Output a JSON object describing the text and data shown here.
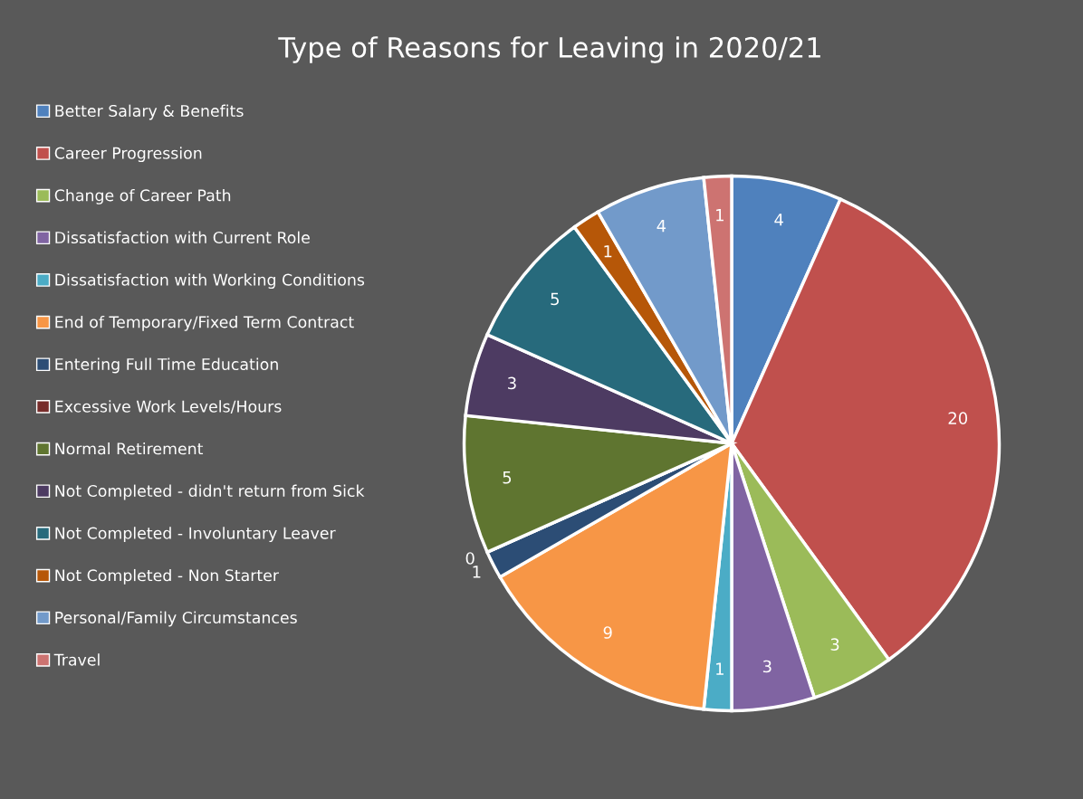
{
  "chart_data": {
    "type": "pie",
    "title": "Type of Reasons for Leaving in 2020/21",
    "categories": [
      "Better Salary & Benefits",
      "Career Progression",
      "Change of Career Path",
      "Dissatisfaction with Current Role",
      "Dissatisfaction with Working Conditions",
      "End of Temporary/Fixed Term Contract",
      "Entering Full Time Education",
      "Excessive Work Levels/Hours",
      "Normal Retirement",
      "Not Completed - didn't return from Sick",
      "Not Completed - Involuntary Leaver",
      "Not Completed - Non Starter",
      "Personal/Family Circumstances",
      "Travel"
    ],
    "values": [
      4,
      20,
      3,
      3,
      1,
      9,
      1,
      0,
      5,
      3,
      5,
      1,
      4,
      1
    ],
    "colors": [
      "#4f81bd",
      "#c0504d",
      "#9bbb59",
      "#8064a2",
      "#4bacc6",
      "#f79646",
      "#2c4d75",
      "#772c2a",
      "#5f7530",
      "#4d3b62",
      "#276a7c",
      "#b65708",
      "#729aca",
      "#cd7371"
    ],
    "value_labels": [
      "4",
      "20",
      "3",
      "3",
      "1",
      "9",
      "1",
      "0",
      "5",
      "3",
      "5",
      "1",
      "4",
      "1"
    ],
    "legend": "left"
  }
}
